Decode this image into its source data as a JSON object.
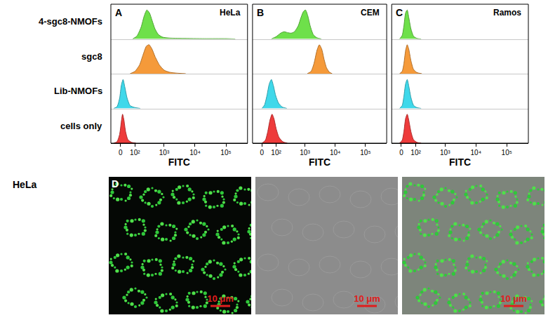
{
  "chart_data": [
    {
      "type": "area",
      "panel_label": "A",
      "title": "HeLa",
      "x_label": "FITC",
      "xlim": [
        -60,
        500000
      ],
      "xticks": [
        0,
        {
          "value": 100,
          "label": "10²"
        },
        {
          "value": 1000,
          "label": "10³"
        },
        {
          "value": 10000,
          "label": "10⁴"
        },
        {
          "value": 100000,
          "label": "10⁵"
        }
      ],
      "ylim": [
        0,
        120
      ],
      "tick_labels": "x",
      "grid": false,
      "series": [
        {
          "name": "4-sgc8-NMOFs",
          "color": "#6ee04a",
          "x": [
            80,
            120,
            170,
            220,
            270,
            330,
            400,
            500,
            650,
            900,
            1500,
            4000,
            20000,
            100000,
            200000
          ],
          "values": [
            0,
            10,
            40,
            80,
            100,
            90,
            65,
            35,
            15,
            6,
            3,
            2,
            1,
            1,
            0
          ]
        },
        {
          "name": "sgc8",
          "color": "#f59a3a",
          "x": [
            60,
            100,
            150,
            200,
            260,
            320,
            400,
            500,
            700,
            1000,
            1500,
            2500,
            5000
          ],
          "values": [
            0,
            8,
            30,
            65,
            95,
            100,
            85,
            60,
            30,
            12,
            5,
            2,
            0
          ]
        },
        {
          "name": "Lib-NMOFs",
          "color": "#3fd8ea",
          "x": [
            -40,
            -20,
            -5,
            5,
            15,
            25,
            40,
            60,
            100,
            160
          ],
          "values": [
            0,
            6,
            35,
            80,
            100,
            75,
            35,
            10,
            3,
            0
          ]
        },
        {
          "name": "cells only",
          "color": "#ee3b3b",
          "x": [
            -40,
            -20,
            -5,
            5,
            12,
            20,
            30,
            45,
            70,
            110
          ],
          "values": [
            0,
            5,
            30,
            75,
            100,
            80,
            40,
            12,
            3,
            0
          ]
        }
      ]
    },
    {
      "type": "area",
      "panel_label": "B",
      "title": "CEM",
      "x_label": "FITC",
      "xlim": [
        -60,
        500000
      ],
      "xticks": [
        0,
        {
          "value": 100,
          "label": "10²"
        },
        {
          "value": 1000,
          "label": "10³"
        },
        {
          "value": 10000,
          "label": "10⁴"
        },
        {
          "value": 100000,
          "label": "10⁵"
        }
      ],
      "ylim": [
        0,
        120
      ],
      "tick_labels": "x",
      "grid": false,
      "series": [
        {
          "name": "4-sgc8-NMOFs",
          "color": "#6ee04a",
          "x": [
            60,
            100,
            150,
            200,
            260,
            350,
            450,
            600,
            750,
            900,
            1050,
            1250,
            1500,
            1900,
            2500,
            3500
          ],
          "values": [
            0,
            8,
            20,
            25,
            22,
            20,
            25,
            45,
            75,
            95,
            100,
            80,
            45,
            15,
            4,
            0
          ]
        },
        {
          "name": "sgc8",
          "color": "#f59a3a",
          "x": [
            1200,
            1600,
            2000,
            2500,
            3000,
            3600,
            4300,
            5200,
            6500,
            8000
          ],
          "values": [
            0,
            8,
            35,
            80,
            100,
            85,
            50,
            20,
            5,
            0
          ]
        },
        {
          "name": "Lib-NMOFs",
          "color": "#3fd8ea",
          "x": [
            0,
            15,
            30,
            45,
            60,
            75,
            95,
            125,
            170,
            250
          ],
          "values": [
            0,
            12,
            45,
            85,
            100,
            80,
            45,
            18,
            5,
            0
          ]
        },
        {
          "name": "cells only",
          "color": "#ee3b3b",
          "x": [
            0,
            20,
            35,
            50,
            65,
            80,
            100,
            130,
            180,
            260
          ],
          "values": [
            0,
            10,
            40,
            80,
            100,
            85,
            50,
            20,
            5,
            0
          ]
        }
      ]
    },
    {
      "type": "area",
      "panel_label": "C",
      "title": "Ramos",
      "x_label": "FITC",
      "xlim": [
        -60,
        500000
      ],
      "xticks": [
        0,
        {
          "value": 100,
          "label": "10²"
        },
        {
          "value": 1000,
          "label": "10³"
        },
        {
          "value": 10000,
          "label": "10⁴"
        },
        {
          "value": 100000,
          "label": "10⁵"
        }
      ],
      "ylim": [
        0,
        120
      ],
      "tick_labels": "x",
      "grid": false,
      "series": [
        {
          "name": "4-sgc8-NMOFs",
          "color": "#6ee04a",
          "x": [
            -10,
            5,
            15,
            25,
            35,
            45,
            60,
            80,
            110,
            160
          ],
          "values": [
            0,
            12,
            45,
            90,
            100,
            75,
            35,
            10,
            2,
            0
          ]
        },
        {
          "name": "sgc8",
          "color": "#f59a3a",
          "x": [
            -10,
            5,
            15,
            25,
            35,
            45,
            60,
            80,
            110,
            170
          ],
          "values": [
            0,
            8,
            35,
            80,
            100,
            85,
            45,
            15,
            4,
            0
          ]
        },
        {
          "name": "Lib-NMOFs",
          "color": "#3fd8ea",
          "x": [
            -10,
            5,
            15,
            25,
            35,
            45,
            60,
            80,
            110,
            160
          ],
          "values": [
            0,
            10,
            42,
            85,
            100,
            78,
            38,
            11,
            3,
            0
          ]
        },
        {
          "name": "cells only",
          "color": "#ee3b3b",
          "x": [
            -10,
            5,
            15,
            25,
            35,
            45,
            60,
            80,
            110,
            160
          ],
          "values": [
            0,
            10,
            40,
            85,
            100,
            80,
            40,
            12,
            3,
            0
          ]
        }
      ]
    }
  ],
  "micrograph": {
    "panel_label": "D",
    "row_label": "HeLa",
    "scale_bars": [
      "10 μm",
      "10 μm",
      "10 μm"
    ]
  }
}
